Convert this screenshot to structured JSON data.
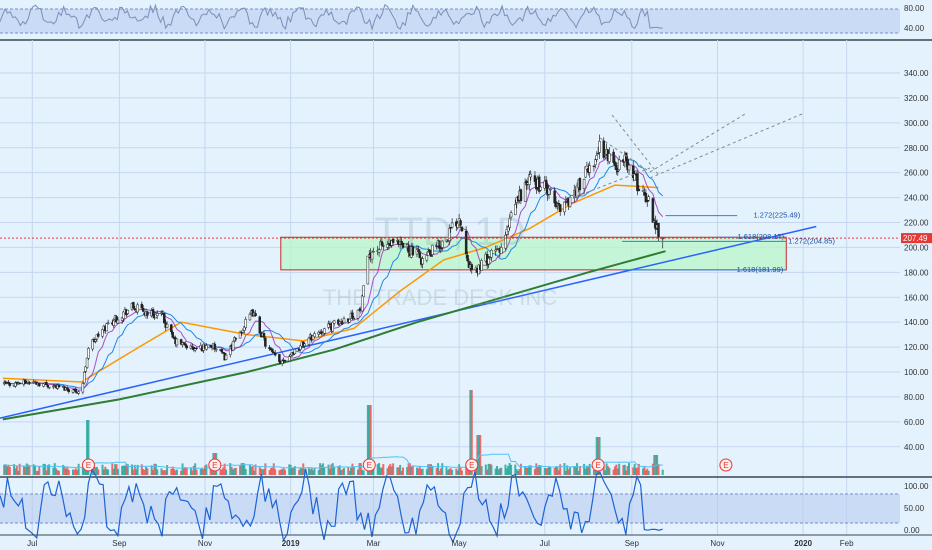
{
  "symbol": "TTD, 1D",
  "company": "THE TRADE DESK INC",
  "colors": {
    "background": "#e3f2fd",
    "band": "#b7c9f0",
    "up": "#26a69a",
    "down": "#ef5350",
    "ma_fast": "#9c27b0",
    "ma_mid": "#1e88e5",
    "ma_50": "#ff9800",
    "ma_200": "#2e7d32",
    "trendline": "#2962ff",
    "zone_fill": "#b9f6ca",
    "zone_border": "#c62828",
    "price_line": "#e53935"
  },
  "top_indicator": {
    "ticks": [
      "80.00",
      "40.00"
    ],
    "range": [
      20,
      95
    ]
  },
  "bottom_indicator": {
    "ticks": [
      "100.00",
      "50.00",
      "0.00"
    ],
    "range": [
      0,
      110
    ]
  },
  "price_axis": {
    "ticks": [
      "340.00",
      "320.00",
      "300.00",
      "280.00",
      "260.00",
      "240.00",
      "220.00",
      "200.00",
      "180.00",
      "160.00",
      "140.00",
      "120.00",
      "100.00",
      "80.00",
      "60.00",
      "40.00"
    ],
    "last_price": "207.49"
  },
  "time_axis": {
    "labels": [
      {
        "text": "Jul",
        "bold": false
      },
      {
        "text": "Sep",
        "bold": false
      },
      {
        "text": "Nov",
        "bold": false
      },
      {
        "text": "2019",
        "bold": true
      },
      {
        "text": "Mar",
        "bold": false
      },
      {
        "text": "May",
        "bold": false
      },
      {
        "text": "Jul",
        "bold": false
      },
      {
        "text": "Sep",
        "bold": false
      },
      {
        "text": "Nov",
        "bold": false
      },
      {
        "text": "2020",
        "bold": true
      },
      {
        "text": "Feb",
        "bold": false
      }
    ]
  },
  "fib_labels": {
    "f1": "1.272(225.49)",
    "f2": "1.618(208.17)",
    "f3": "1.272(204.85)",
    "f4": "1.618(181.99)"
  },
  "earnings_markers": [
    "E",
    "E",
    "E",
    "E",
    "E",
    "E"
  ],
  "chart_data": {
    "type": "candlestick",
    "y_range": [
      30,
      345
    ],
    "x_range": [
      "2018-06-08",
      "2020-03-10"
    ],
    "price_path": [
      [
        "2018-06-10",
        90
      ],
      [
        "2018-07-01",
        92
      ],
      [
        "2018-07-20",
        88
      ],
      [
        "2018-08-05",
        84
      ],
      [
        "2018-08-10",
        120
      ],
      [
        "2018-08-25",
        140
      ],
      [
        "2018-09-10",
        152
      ],
      [
        "2018-09-20",
        148
      ],
      [
        "2018-10-01",
        145
      ],
      [
        "2018-10-10",
        125
      ],
      [
        "2018-10-25",
        118
      ],
      [
        "2018-11-05",
        122
      ],
      [
        "2018-11-15",
        112
      ],
      [
        "2018-11-25",
        130
      ],
      [
        "2018-12-05",
        148
      ],
      [
        "2018-12-15",
        120
      ],
      [
        "2018-12-24",
        108
      ],
      [
        "2019-01-05",
        118
      ],
      [
        "2019-01-20",
        132
      ],
      [
        "2019-02-05",
        140
      ],
      [
        "2019-02-20",
        150
      ],
      [
        "2019-02-26",
        196
      ],
      [
        "2019-03-10",
        202
      ],
      [
        "2019-03-25",
        200
      ],
      [
        "2019-04-05",
        190
      ],
      [
        "2019-04-20",
        205
      ],
      [
        "2019-05-01",
        225
      ],
      [
        "2019-05-10",
        178
      ],
      [
        "2019-05-20",
        190
      ],
      [
        "2019-06-01",
        200
      ],
      [
        "2019-06-10",
        235
      ],
      [
        "2019-06-20",
        255
      ],
      [
        "2019-07-01",
        248
      ],
      [
        "2019-07-10",
        232
      ],
      [
        "2019-07-20",
        240
      ],
      [
        "2019-08-01",
        262
      ],
      [
        "2019-08-10",
        282
      ],
      [
        "2019-08-20",
        265
      ],
      [
        "2019-08-28",
        270
      ],
      [
        "2019-09-05",
        250
      ],
      [
        "2019-09-12",
        240
      ],
      [
        "2019-09-18",
        218
      ],
      [
        "2019-09-23",
        207.49
      ]
    ],
    "volume_spikes": [
      [
        "2018-08-10",
        55
      ],
      [
        "2018-11-08",
        22
      ],
      [
        "2019-02-26",
        70
      ],
      [
        "2019-05-10",
        85
      ],
      [
        "2019-05-15",
        40
      ],
      [
        "2019-08-08",
        38
      ],
      [
        "2019-09-18",
        20
      ]
    ],
    "moving_averages": [
      {
        "path": [
          [
            "2018-06-10",
            95
          ],
          [
            "2018-08-05",
            92
          ],
          [
            "2018-09-15",
            120
          ],
          [
            "2018-10-15",
            140
          ],
          [
            "2018-12-01",
            130
          ],
          [
            "2019-01-10",
            125
          ],
          [
            "2019-02-15",
            135
          ],
          [
            "2019-03-20",
            165
          ],
          [
            "2019-04-20",
            190
          ],
          [
            "2019-05-20",
            200
          ],
          [
            "2019-06-20",
            215
          ],
          [
            "2019-07-20",
            235
          ],
          [
            "2019-08-20",
            250
          ],
          [
            "2019-09-20",
            248
          ]
        ]
      },
      {
        "path": [
          [
            "2018-06-10",
            62
          ],
          [
            "2018-09-01",
            78
          ],
          [
            "2018-12-01",
            100
          ],
          [
            "2019-02-01",
            118
          ],
          [
            "2019-04-01",
            140
          ],
          [
            "2019-06-01",
            160
          ],
          [
            "2019-08-01",
            180
          ],
          [
            "2019-09-25",
            197
          ]
        ]
      }
    ],
    "annotations": {
      "trendline": [
        [
          "2018-06-08",
          63
        ],
        [
          "2019-12-20",
          212
        ]
      ],
      "zone": {
        "x": [
          "2018-12-25",
          "2019-12-20"
        ],
        "y": [
          181.99,
          208.17
        ]
      },
      "fib_levels": [
        {
          "value": 225.49,
          "x": [
            "2019-09-25",
            "2019-11-15"
          ]
        },
        {
          "value": 208.17,
          "x": [
            "2019-11-01",
            "2019-12-20"
          ]
        },
        {
          "value": 204.85,
          "x": [
            "2019-08-25",
            "2019-12-20"
          ]
        },
        {
          "value": 181.99,
          "x": [
            "2019-08-25",
            "2019-12-20"
          ]
        }
      ]
    }
  }
}
